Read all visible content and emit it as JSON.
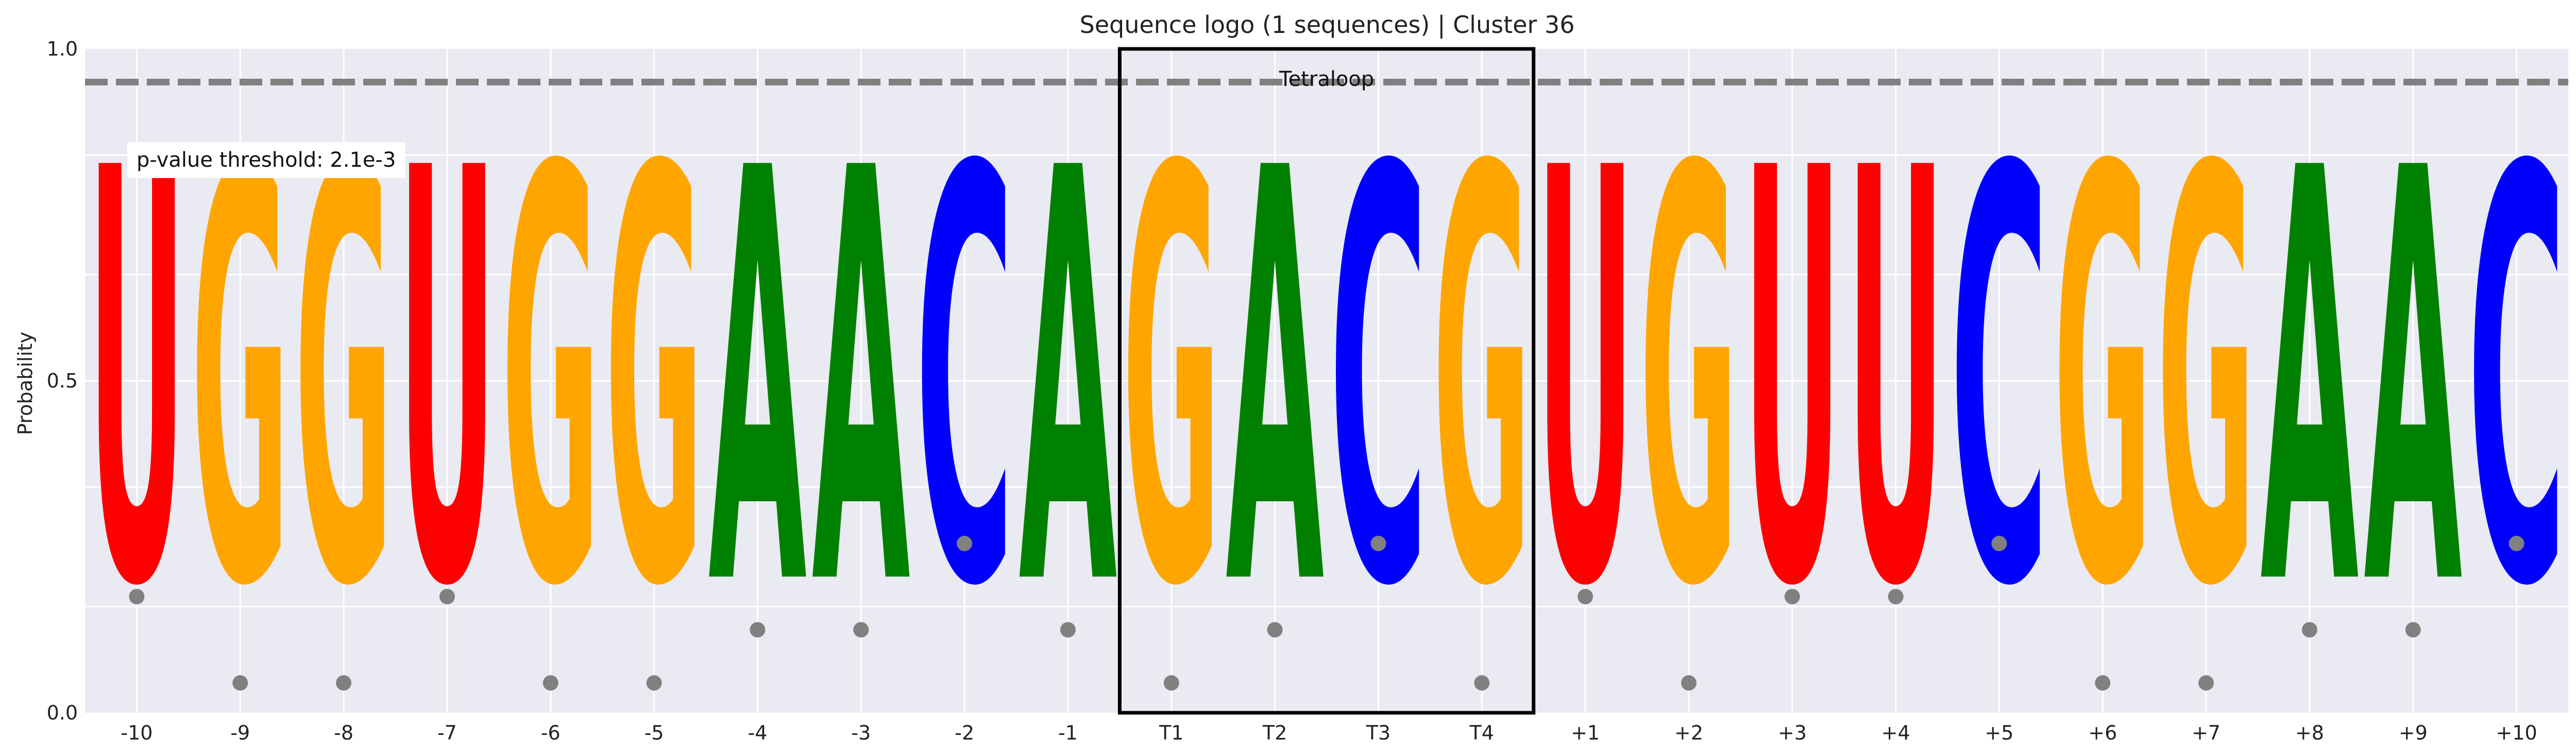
{
  "chart_data": {
    "type": "sequence-logo",
    "title": "Sequence logo (1 sequences) | Cluster 36",
    "xlabel": "",
    "ylabel": "Probability",
    "ylim": [
      0,
      1
    ],
    "yticks": [
      "0.0",
      "0.5",
      "1.0"
    ],
    "grid": true,
    "positions": [
      "-10",
      "-9",
      "-8",
      "-7",
      "-6",
      "-5",
      "-4",
      "-3",
      "-2",
      "-1",
      "T1",
      "T2",
      "T3",
      "T4",
      "+1",
      "+2",
      "+3",
      "+4",
      "+5",
      "+6",
      "+7",
      "+8",
      "+9",
      "+10"
    ],
    "letters": [
      "U",
      "G",
      "G",
      "U",
      "G",
      "G",
      "A",
      "A",
      "C",
      "A",
      "G",
      "A",
      "C",
      "G",
      "U",
      "G",
      "U",
      "U",
      "C",
      "G",
      "G",
      "A",
      "A",
      "C"
    ],
    "probabilities": [
      1,
      1,
      1,
      1,
      1,
      1,
      1,
      1,
      1,
      1,
      1,
      1,
      1,
      1,
      1,
      1,
      1,
      1,
      1,
      1,
      1,
      1,
      1,
      1
    ],
    "threshold_line": 0.95,
    "threshold_label": "p-value threshold: 2.1e-3",
    "highlight": {
      "label": "Tetraloop",
      "positions": [
        "T1",
        "T2",
        "T3",
        "T4"
      ]
    },
    "colors": {
      "A": "#008000",
      "C": "#0000ff",
      "G": "#ffa500",
      "U": "#ff0000",
      "threshold": "#808080",
      "marker": "#808080",
      "background": "#eaeaf2",
      "grid": "#ffffff"
    }
  }
}
